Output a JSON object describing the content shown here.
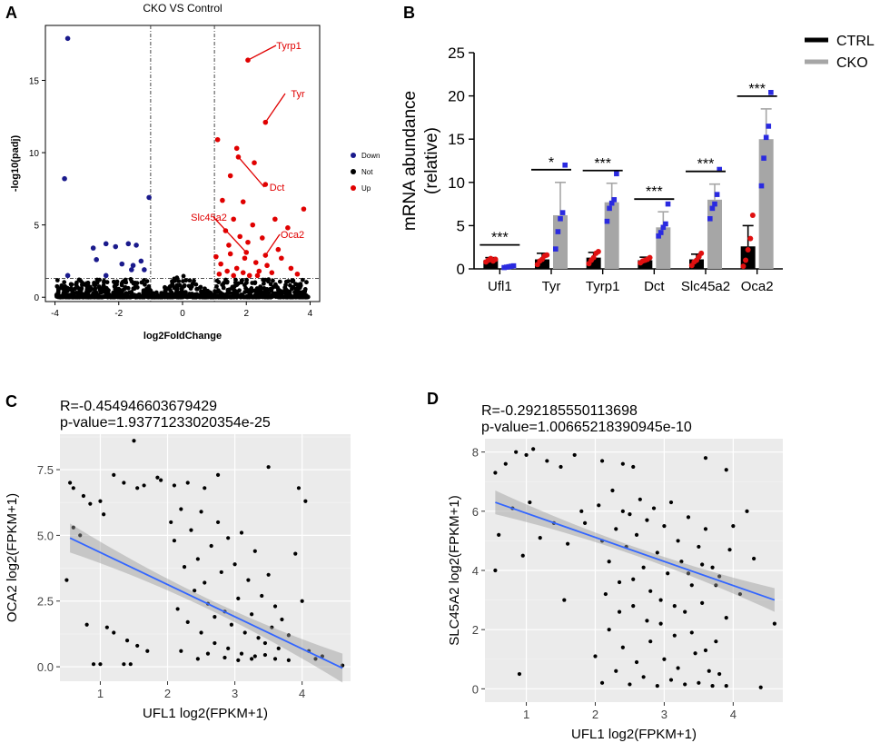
{
  "chart_data": [
    {
      "panel": "A",
      "type": "scatter",
      "title": "CKO VS Control",
      "xlabel": "log2FoldChange",
      "ylabel": "-log10(padj)",
      "xlim": [
        -4.3,
        4.3
      ],
      "ylim": [
        -0.3,
        18.8
      ],
      "xticks": [
        -4,
        -2,
        0,
        2,
        4
      ],
      "yticks": [
        0,
        5,
        10,
        15
      ],
      "vlines": [
        -1,
        1
      ],
      "hline": 1.3,
      "legend": [
        {
          "label": "Down",
          "color": "#1a1a8c"
        },
        {
          "label": "Not",
          "color": "#000000"
        },
        {
          "label": "Up",
          "color": "#e00000"
        }
      ],
      "down_points": [
        [
          -3.6,
          17.9
        ],
        [
          -3.7,
          8.2
        ],
        [
          -1.05,
          6.9
        ],
        [
          -3.6,
          1.5
        ],
        [
          -2.8,
          3.4
        ],
        [
          -2.4,
          3.7
        ],
        [
          -2.1,
          3.5
        ],
        [
          -1.7,
          3.7
        ],
        [
          -1.45,
          3.6
        ],
        [
          -2.7,
          2.6
        ],
        [
          -1.9,
          2.3
        ],
        [
          -1.55,
          2.2
        ],
        [
          -1.2,
          1.9
        ],
        [
          -1.6,
          1.9
        ],
        [
          -2.4,
          1.5
        ],
        [
          -1.3,
          2.5
        ]
      ],
      "labeled_up": [
        {
          "label": "Tyrp1",
          "x": 2.05,
          "y": 16.4
        },
        {
          "label": "Tyr",
          "x": 2.6,
          "y": 12.1
        },
        {
          "label": "Dct",
          "x": 1.75,
          "y": 9.7
        },
        {
          "label": "Slc45a2",
          "x": 2.0,
          "y": 3.1
        },
        {
          "label": "Oca2",
          "x": 2.6,
          "y": 2.9
        }
      ],
      "up_points": [
        [
          1.1,
          10.9
        ],
        [
          1.7,
          10.3
        ],
        [
          2.25,
          9.3
        ],
        [
          1.5,
          8.4
        ],
        [
          2.6,
          7.8
        ],
        [
          3.8,
          6.1
        ],
        [
          1.25,
          6.7
        ],
        [
          1.9,
          6.6
        ],
        [
          2.9,
          5.4
        ],
        [
          3.3,
          4.8
        ],
        [
          1.6,
          5.4
        ],
        [
          2.2,
          5.0
        ],
        [
          1.35,
          4.6
        ],
        [
          1.8,
          4.2
        ],
        [
          2.5,
          4.1
        ],
        [
          3.0,
          3.3
        ],
        [
          3.1,
          2.7
        ],
        [
          2.3,
          2.4
        ],
        [
          1.5,
          3.0
        ],
        [
          1.95,
          2.7
        ],
        [
          1.2,
          2.3
        ],
        [
          2.65,
          2.2
        ],
        [
          1.7,
          2.0
        ],
        [
          2.4,
          1.8
        ],
        [
          1.4,
          1.8
        ],
        [
          2.8,
          1.7
        ],
        [
          3.4,
          2.0
        ],
        [
          1.15,
          1.6
        ],
        [
          1.9,
          1.7
        ],
        [
          2.1,
          1.5
        ],
        [
          1.6,
          1.5
        ],
        [
          2.35,
          1.5
        ],
        [
          3.6,
          1.6
        ],
        [
          1.05,
          2.8
        ],
        [
          1.45,
          3.6
        ],
        [
          2.05,
          3.8
        ]
      ]
    },
    {
      "panel": "B",
      "type": "bar",
      "ylabel": "mRNA abundance\n(relative)",
      "ylim": [
        0,
        25
      ],
      "yticks": [
        0,
        5,
        10,
        15,
        20,
        25
      ],
      "categories": [
        "Ufl1",
        "Tyr",
        "Tyrp1",
        "Dct",
        "Slc45a2",
        "Oca2"
      ],
      "significance": [
        "***",
        "*",
        "***",
        "***",
        "***",
        "***"
      ],
      "series": [
        {
          "name": "CTRL",
          "color": "#000000",
          "values": [
            1.0,
            1.1,
            1.3,
            1.0,
            1.1,
            2.6
          ],
          "errors": [
            0.3,
            0.7,
            0.6,
            0.35,
            0.6,
            2.4
          ],
          "points": [
            [
              0.8,
              1.0,
              1.2,
              0.9,
              1.1
            ],
            [
              0.5,
              0.9,
              1.1,
              1.5,
              1.6
            ],
            [
              0.6,
              1.0,
              1.3,
              1.8,
              2.0
            ],
            [
              0.7,
              0.9,
              1.0,
              1.1,
              1.3
            ],
            [
              0.4,
              0.8,
              1.0,
              1.4,
              1.8
            ],
            [
              0.3,
              1.0,
              2.2,
              3.5,
              6.2
            ]
          ]
        },
        {
          "name": "CKO",
          "color": "#a6a6a6",
          "values": [
            0.25,
            6.2,
            7.7,
            4.8,
            8.0,
            15.0
          ],
          "errors": [
            0.1,
            3.8,
            2.2,
            1.8,
            1.8,
            3.5
          ],
          "points": [
            [
              0.15,
              0.2,
              0.25,
              0.3,
              0.35
            ],
            [
              2.3,
              4.3,
              5.8,
              6.5,
              12.0
            ],
            [
              5.5,
              7.0,
              7.6,
              8.0,
              11.0
            ],
            [
              3.8,
              4.2,
              4.8,
              5.2,
              7.5
            ],
            [
              5.8,
              7.0,
              7.5,
              8.6,
              11.5
            ],
            [
              9.6,
              12.8,
              15.2,
              16.5,
              20.4
            ]
          ]
        }
      ]
    },
    {
      "panel": "C",
      "type": "scatter",
      "stat_r": "R=-0.454946603679429",
      "stat_p": "p-value=1.93771233020354e-25",
      "xlabel": "UFL1 log2(FPKM+1)",
      "ylabel": "OCA2 log2(FPKM+1)",
      "xlim": [
        0.4,
        4.72
      ],
      "ylim": [
        -0.55,
        8.85
      ],
      "xticks": [
        1,
        2,
        3,
        4
      ],
      "ytick_labels": [
        "0.0",
        "2.5",
        "5.0",
        "7.5"
      ],
      "ytick_values": [
        0,
        2.5,
        5,
        7.5
      ],
      "fit": {
        "x0": 0.55,
        "y0": 4.9,
        "x1": 4.6,
        "y1": -0.05,
        "band": 0.55
      },
      "points": [
        [
          0.55,
          7.0
        ],
        [
          0.6,
          6.8
        ],
        [
          0.75,
          6.5
        ],
        [
          0.85,
          6.2
        ],
        [
          1.0,
          6.3
        ],
        [
          1.05,
          5.8
        ],
        [
          1.2,
          7.3
        ],
        [
          1.35,
          7.0
        ],
        [
          1.5,
          8.6
        ],
        [
          1.55,
          6.8
        ],
        [
          1.65,
          6.9
        ],
        [
          1.85,
          7.2
        ],
        [
          1.9,
          7.1
        ],
        [
          2.1,
          6.9
        ],
        [
          2.3,
          7.0
        ],
        [
          2.55,
          6.8
        ],
        [
          2.75,
          7.3
        ],
        [
          3.5,
          7.6
        ],
        [
          3.95,
          6.8
        ],
        [
          4.05,
          6.3
        ],
        [
          0.6,
          5.3
        ],
        [
          0.7,
          5.0
        ],
        [
          0.5,
          3.3
        ],
        [
          0.8,
          1.6
        ],
        [
          1.1,
          1.5
        ],
        [
          1.2,
          1.3
        ],
        [
          1.4,
          1.0
        ],
        [
          1.55,
          0.8
        ],
        [
          1.7,
          0.6
        ],
        [
          0.9,
          0.1
        ],
        [
          1.0,
          0.1
        ],
        [
          1.35,
          0.1
        ],
        [
          1.45,
          0.1
        ],
        [
          2.05,
          5.5
        ],
        [
          2.1,
          4.8
        ],
        [
          2.2,
          6.0
        ],
        [
          2.25,
          3.8
        ],
        [
          2.35,
          5.2
        ],
        [
          2.4,
          2.9
        ],
        [
          2.45,
          4.1
        ],
        [
          2.5,
          5.9
        ],
        [
          2.55,
          3.2
        ],
        [
          2.6,
          2.4
        ],
        [
          2.65,
          4.6
        ],
        [
          2.7,
          1.9
        ],
        [
          2.75,
          5.5
        ],
        [
          2.8,
          3.6
        ],
        [
          2.85,
          2.1
        ],
        [
          2.9,
          4.9
        ],
        [
          2.95,
          1.6
        ],
        [
          3.0,
          3.9
        ],
        [
          3.05,
          2.6
        ],
        [
          3.1,
          5.1
        ],
        [
          3.15,
          1.3
        ],
        [
          3.2,
          3.3
        ],
        [
          3.25,
          2.0
        ],
        [
          3.3,
          4.4
        ],
        [
          3.35,
          1.1
        ],
        [
          3.4,
          2.7
        ],
        [
          3.45,
          0.9
        ],
        [
          3.5,
          3.5
        ],
        [
          3.55,
          1.5
        ],
        [
          3.6,
          2.3
        ],
        [
          3.65,
          0.7
        ],
        [
          3.7,
          1.8
        ],
        [
          3.8,
          1.2
        ],
        [
          3.9,
          4.3
        ],
        [
          4.0,
          2.5
        ],
        [
          4.1,
          0.6
        ],
        [
          4.2,
          0.3
        ],
        [
          4.3,
          0.4
        ],
        [
          4.6,
          0.05
        ],
        [
          2.15,
          2.2
        ],
        [
          2.3,
          1.7
        ],
        [
          2.5,
          1.3
        ],
        [
          2.7,
          0.9
        ],
        [
          2.9,
          0.7
        ],
        [
          3.1,
          0.5
        ],
        [
          3.3,
          0.4
        ],
        [
          2.2,
          0.6
        ],
        [
          2.45,
          0.3
        ],
        [
          2.6,
          0.5
        ],
        [
          2.85,
          0.35
        ],
        [
          3.05,
          0.25
        ],
        [
          3.25,
          0.3
        ],
        [
          3.45,
          0.45
        ],
        [
          3.6,
          0.3
        ],
        [
          3.8,
          0.25
        ]
      ]
    },
    {
      "panel": "D",
      "type": "scatter",
      "stat_r": "R=-0.292185550113698",
      "stat_p": "p-value=1.00665218390945e-10",
      "xlabel": "UFL1 log2(FPKM+1)",
      "ylabel": "SLC45A2 log2(FPKM+1)",
      "xlim": [
        0.4,
        4.72
      ],
      "ylim": [
        -0.45,
        8.45
      ],
      "xticks": [
        1,
        2,
        3,
        4
      ],
      "ytick_labels": [
        "0",
        "2",
        "4",
        "6",
        "8"
      ],
      "ytick_values": [
        0,
        2,
        4,
        6,
        8
      ],
      "fit": {
        "x0": 0.55,
        "y0": 6.3,
        "x1": 4.6,
        "y1": 3.0,
        "band": 0.4
      },
      "points": [
        [
          0.55,
          7.3
        ],
        [
          0.7,
          7.6
        ],
        [
          0.85,
          8.0
        ],
        [
          1.0,
          7.9
        ],
        [
          1.1,
          8.1
        ],
        [
          1.3,
          7.7
        ],
        [
          1.5,
          7.5
        ],
        [
          1.7,
          7.9
        ],
        [
          2.1,
          7.7
        ],
        [
          2.4,
          7.6
        ],
        [
          2.55,
          7.5
        ],
        [
          3.6,
          7.8
        ],
        [
          3.9,
          7.4
        ],
        [
          0.6,
          5.2
        ],
        [
          0.8,
          6.1
        ],
        [
          0.95,
          4.5
        ],
        [
          1.05,
          6.3
        ],
        [
          1.2,
          5.1
        ],
        [
          1.4,
          5.6
        ],
        [
          1.6,
          4.9
        ],
        [
          1.8,
          6.0
        ],
        [
          0.55,
          4.0
        ],
        [
          0.9,
          0.5
        ],
        [
          1.55,
          3.0
        ],
        [
          1.85,
          5.6
        ],
        [
          2.05,
          6.2
        ],
        [
          2.1,
          5.0
        ],
        [
          2.2,
          4.3
        ],
        [
          2.25,
          6.7
        ],
        [
          2.3,
          5.4
        ],
        [
          2.35,
          3.6
        ],
        [
          2.4,
          6.0
        ],
        [
          2.45,
          4.8
        ],
        [
          2.5,
          5.9
        ],
        [
          2.55,
          2.8
        ],
        [
          2.6,
          5.2
        ],
        [
          2.65,
          6.4
        ],
        [
          2.7,
          4.1
        ],
        [
          2.75,
          5.7
        ],
        [
          2.8,
          3.3
        ],
        [
          2.85,
          6.1
        ],
        [
          2.9,
          4.6
        ],
        [
          2.95,
          2.2
        ],
        [
          3.0,
          5.5
        ],
        [
          3.05,
          3.9
        ],
        [
          3.1,
          6.3
        ],
        [
          3.15,
          1.8
        ],
        [
          3.2,
          5.0
        ],
        [
          3.25,
          4.3
        ],
        [
          3.3,
          2.6
        ],
        [
          3.35,
          5.8
        ],
        [
          3.4,
          3.5
        ],
        [
          3.45,
          1.2
        ],
        [
          3.5,
          4.8
        ],
        [
          3.55,
          2.9
        ],
        [
          3.6,
          5.4
        ],
        [
          3.65,
          0.6
        ],
        [
          3.7,
          4.1
        ],
        [
          3.75,
          1.6
        ],
        [
          3.8,
          3.8
        ],
        [
          3.9,
          2.4
        ],
        [
          4.0,
          5.5
        ],
        [
          4.1,
          3.2
        ],
        [
          4.2,
          6.0
        ],
        [
          4.3,
          4.4
        ],
        [
          4.6,
          2.2
        ],
        [
          2.1,
          0.2
        ],
        [
          2.3,
          0.6
        ],
        [
          2.5,
          0.15
        ],
        [
          2.7,
          0.4
        ],
        [
          2.9,
          0.1
        ],
        [
          3.1,
          0.3
        ],
        [
          3.3,
          0.15
        ],
        [
          3.5,
          0.2
        ],
        [
          3.7,
          0.1
        ],
        [
          3.9,
          0.1
        ],
        [
          4.4,
          0.05
        ],
        [
          2.0,
          1.1
        ],
        [
          2.2,
          2.0
        ],
        [
          2.4,
          1.4
        ],
        [
          2.6,
          0.9
        ],
        [
          2.8,
          1.6
        ],
        [
          3.0,
          1.0
        ],
        [
          3.2,
          0.7
        ],
        [
          3.4,
          1.9
        ],
        [
          3.6,
          1.3
        ],
        [
          3.8,
          0.5
        ],
        [
          2.15,
          3.2
        ],
        [
          2.35,
          2.6
        ],
        [
          2.55,
          3.7
        ],
        [
          2.75,
          2.3
        ],
        [
          2.95,
          3.0
        ],
        [
          3.15,
          2.8
        ],
        [
          3.35,
          3.9
        ],
        [
          3.55,
          4.2
        ],
        [
          3.75,
          3.5
        ],
        [
          3.95,
          4.7
        ]
      ]
    }
  ]
}
